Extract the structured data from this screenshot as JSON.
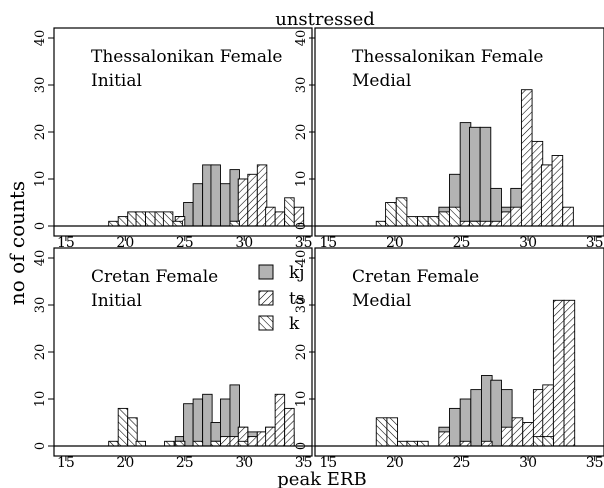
{
  "figure": {
    "title": "unstressed",
    "xlabel": "peak ERB",
    "ylabel": "no of counts",
    "colors": {
      "kj": "#b3b3b3",
      "ts": "#ffffff",
      "k": "#ffffff",
      "stroke": "#000000"
    }
  },
  "legend": {
    "placement": "top-right of bottom-left panel",
    "items": [
      {
        "key": "kj",
        "label": "kj",
        "pattern": "solid-gray"
      },
      {
        "key": "ts",
        "label": "ts",
        "pattern": "forward-hatch"
      },
      {
        "key": "k",
        "label": "k",
        "pattern": "back-hatch"
      }
    ]
  },
  "chart_data": [
    {
      "type": "bar",
      "title": "Thessalonikan Female",
      "subtitle": "Initial",
      "xlim": [
        14,
        35.7
      ],
      "ylim": [
        0,
        40
      ],
      "xticks": [
        "15",
        "20",
        "25",
        "30",
        "35"
      ],
      "yticks": [
        "0",
        "10",
        "20",
        "30",
        "40"
      ],
      "bin_width": 0.8,
      "series": [
        {
          "key": "kj",
          "bins": [
            [
              24.2,
              2
            ],
            [
              24.9,
              5
            ],
            [
              25.7,
              9
            ],
            [
              26.5,
              13
            ],
            [
              27.2,
              13
            ],
            [
              28.0,
              9
            ],
            [
              28.8,
              12
            ],
            [
              29.5,
              10
            ],
            [
              33.4,
              1
            ]
          ]
        },
        {
          "key": "ts",
          "bins": [
            [
              24.2,
              2
            ],
            [
              28.8,
              1
            ],
            [
              29.5,
              10
            ],
            [
              30.3,
              11
            ],
            [
              31.1,
              13
            ],
            [
              31.8,
              4
            ],
            [
              32.6,
              3
            ],
            [
              33.4,
              1
            ],
            [
              34.2,
              4
            ]
          ]
        },
        {
          "key": "k",
          "bins": [
            [
              18.6,
              1
            ],
            [
              19.4,
              2
            ],
            [
              20.2,
              3
            ],
            [
              20.9,
              3
            ],
            [
              21.7,
              3
            ],
            [
              22.5,
              3
            ],
            [
              23.2,
              3
            ],
            [
              24.0,
              1
            ],
            [
              28.8,
              1
            ],
            [
              33.4,
              6
            ]
          ]
        }
      ]
    },
    {
      "type": "bar",
      "title": "Thessalonikan Female",
      "subtitle": "Medial",
      "xlim": [
        14,
        35.7
      ],
      "ylim": [
        0,
        40
      ],
      "xticks": [
        "15",
        "20",
        "25",
        "30",
        "35"
      ],
      "yticks": [
        "0",
        "10",
        "20",
        "30",
        "40"
      ],
      "bin_width": 0.8,
      "series": [
        {
          "key": "kj",
          "bins": [
            [
              23.3,
              4
            ],
            [
              24.1,
              11
            ],
            [
              24.9,
              22
            ],
            [
              25.6,
              21
            ],
            [
              26.4,
              21
            ],
            [
              27.2,
              8
            ],
            [
              28.0,
              4
            ],
            [
              28.7,
              8
            ],
            [
              29.5,
              4
            ],
            [
              30.3,
              1
            ]
          ]
        },
        {
          "key": "ts",
          "bins": [
            [
              24.9,
              1
            ],
            [
              25.6,
              1
            ],
            [
              26.4,
              1
            ],
            [
              27.2,
              1
            ],
            [
              28.0,
              3
            ],
            [
              28.7,
              4
            ],
            [
              29.5,
              29
            ],
            [
              30.3,
              18
            ],
            [
              31.0,
              13
            ],
            [
              31.8,
              15
            ],
            [
              32.6,
              4
            ]
          ]
        },
        {
          "key": "k",
          "bins": [
            [
              18.6,
              1
            ],
            [
              19.3,
              5
            ],
            [
              20.1,
              6
            ],
            [
              20.9,
              2
            ],
            [
              21.7,
              2
            ],
            [
              22.5,
              2
            ],
            [
              23.3,
              3
            ],
            [
              24.1,
              4
            ],
            [
              25.6,
              1
            ]
          ]
        }
      ]
    },
    {
      "type": "bar",
      "title": "Cretan Female",
      "subtitle": "Initial",
      "xlim": [
        14,
        35.7
      ],
      "ylim": [
        0,
        40
      ],
      "xticks": [
        "15",
        "20",
        "25",
        "30",
        "35"
      ],
      "yticks": [
        "0",
        "10",
        "20",
        "30",
        "40"
      ],
      "bin_width": 0.8,
      "series": [
        {
          "key": "kj",
          "bins": [
            [
              24.2,
              2
            ],
            [
              24.9,
              9
            ],
            [
              25.7,
              10
            ],
            [
              26.5,
              11
            ],
            [
              27.2,
              5
            ],
            [
              28.0,
              10
            ],
            [
              28.8,
              13
            ],
            [
              29.5,
              4
            ],
            [
              30.3,
              3
            ],
            [
              31.1,
              3
            ],
            [
              31.8,
              4
            ],
            [
              33.4,
              3
            ]
          ]
        },
        {
          "key": "ts",
          "bins": [
            [
              24.2,
              1
            ],
            [
              27.2,
              1
            ],
            [
              28.0,
              2
            ],
            [
              28.8,
              2
            ],
            [
              29.5,
              4
            ],
            [
              30.3,
              2
            ],
            [
              31.1,
              3
            ],
            [
              31.8,
              4
            ],
            [
              32.6,
              11
            ],
            [
              33.4,
              8
            ]
          ]
        },
        {
          "key": "k",
          "bins": [
            [
              18.6,
              1
            ],
            [
              19.4,
              8
            ],
            [
              20.2,
              6
            ],
            [
              20.9,
              1
            ],
            [
              23.3,
              1
            ],
            [
              24.2,
              1
            ],
            [
              25.7,
              1
            ],
            [
              27.2,
              1
            ],
            [
              29.5,
              1
            ]
          ]
        }
      ]
    },
    {
      "type": "bar",
      "title": "Cretan Female",
      "subtitle": "Medial",
      "xlim": [
        14,
        35.7
      ],
      "ylim": [
        0,
        40
      ],
      "xticks": [
        "15",
        "20",
        "25",
        "30",
        "35"
      ],
      "yticks": [
        "0",
        "10",
        "20",
        "30",
        "40"
      ],
      "bin_width": 0.8,
      "series": [
        {
          "key": "kj",
          "bins": [
            [
              23.3,
              4
            ],
            [
              24.1,
              8
            ],
            [
              24.9,
              10
            ],
            [
              25.7,
              12
            ],
            [
              26.5,
              15
            ],
            [
              27.2,
              14
            ],
            [
              28.0,
              12
            ],
            [
              28.8,
              5
            ],
            [
              29.6,
              4
            ]
          ]
        },
        {
          "key": "ts",
          "bins": [
            [
              23.3,
              3
            ],
            [
              24.9,
              1
            ],
            [
              26.5,
              1
            ],
            [
              28.0,
              4
            ],
            [
              28.8,
              6
            ],
            [
              29.6,
              5
            ],
            [
              30.4,
              12
            ],
            [
              31.1,
              13
            ],
            [
              31.9,
              31
            ],
            [
              32.7,
              31
            ]
          ]
        },
        {
          "key": "k",
          "bins": [
            [
              18.6,
              6
            ],
            [
              19.4,
              6
            ],
            [
              20.2,
              1
            ],
            [
              20.9,
              1
            ],
            [
              21.7,
              1
            ],
            [
              30.4,
              2
            ],
            [
              31.1,
              2
            ]
          ]
        }
      ]
    }
  ]
}
